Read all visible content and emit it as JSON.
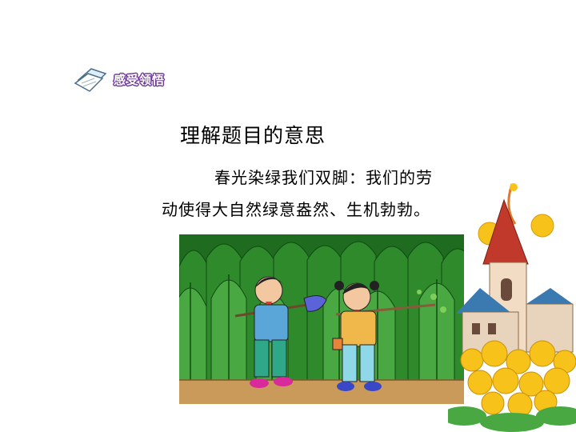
{
  "section_tag": {
    "label": "感受领悟",
    "icon": "paper-notes-icon"
  },
  "heading": "理解题目的意思",
  "paragraph": {
    "line1": "春光染绿我们双脚：我们的劳",
    "line2": "动使得大自然绿意盎然、生机勃勃。"
  },
  "colors": {
    "forest_dark": "#1f6b1f",
    "forest_mid": "#3f9a3a",
    "forest_light": "#7fc46a",
    "ground": "#c99a5a",
    "flower_yellow": "#f7c21a",
    "roof_red": "#c0392b",
    "tag_purple": "#6e3b94"
  }
}
